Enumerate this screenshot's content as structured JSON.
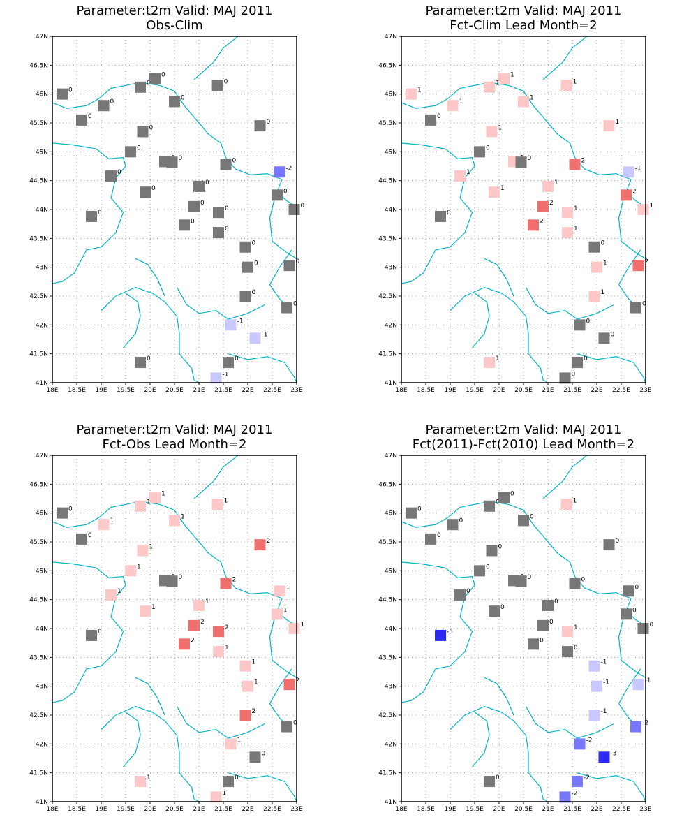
{
  "colors": {
    "river": "#00b4c8",
    "grid": "#999999",
    "-4": "#00008c",
    "-3": "#2a2af0",
    "-2": "#7878ff",
    "-1": "#c8c8ff",
    "0": "#777777",
    "1": "#ffc8c8",
    "2": "#f07070"
  },
  "axes": {
    "x_ticks": [
      "18E",
      "18.5E",
      "19E",
      "19.5E",
      "20E",
      "20.5E",
      "21E",
      "21.5E",
      "22E",
      "22.5E",
      "23E"
    ],
    "y_ticks": [
      "41N",
      "41.5N",
      "42N",
      "42.5N",
      "43N",
      "43.5N",
      "44N",
      "44.5N",
      "45N",
      "45.5N",
      "46N",
      "46.5N",
      "47N"
    ],
    "xlim": [
      18,
      23
    ],
    "ylim": [
      41,
      47
    ]
  },
  "stations": [
    [
      18.2,
      46.0
    ],
    [
      18.6,
      45.55
    ],
    [
      18.8,
      43.88
    ],
    [
      19.05,
      45.8
    ],
    [
      19.2,
      44.58
    ],
    [
      19.6,
      45.0
    ],
    [
      19.8,
      46.12
    ],
    [
      19.85,
      45.35
    ],
    [
      19.9,
      44.3
    ],
    [
      20.1,
      46.27
    ],
    [
      20.3,
      44.83
    ],
    [
      20.45,
      44.82
    ],
    [
      20.5,
      45.87
    ],
    [
      20.7,
      43.73
    ],
    [
      20.9,
      44.05
    ],
    [
      21.0,
      44.4
    ],
    [
      21.38,
      46.15
    ],
    [
      21.4,
      43.95
    ],
    [
      21.4,
      43.6
    ],
    [
      21.55,
      44.78
    ],
    [
      21.95,
      43.35
    ],
    [
      21.95,
      42.5
    ],
    [
      22.0,
      43.0
    ],
    [
      22.25,
      45.45
    ],
    [
      22.6,
      44.25
    ],
    [
      22.65,
      44.65
    ],
    [
      22.8,
      42.3
    ],
    [
      22.85,
      43.03
    ],
    [
      22.95,
      44.0
    ],
    [
      21.65,
      42.0
    ],
    [
      22.15,
      41.77
    ],
    [
      21.6,
      41.35
    ],
    [
      21.35,
      41.08
    ],
    [
      19.8,
      41.35
    ]
  ],
  "panels": [
    {
      "title_line1": "Parameter:t2m Valid: MAJ 2011",
      "title_line2": "Obs-Clim",
      "values": [
        0,
        0,
        0,
        0,
        0,
        0,
        0,
        0,
        0,
        0,
        0,
        0,
        0,
        0,
        0,
        0,
        0,
        0,
        0,
        0,
        0,
        0,
        0,
        0,
        0,
        -2,
        0,
        0,
        0,
        -1,
        -1,
        0,
        -1,
        0
      ]
    },
    {
      "title_line1": "Parameter:t2m Valid: MAJ 2011",
      "title_line2": "Fct-Clim Lead Month=2",
      "values": [
        1,
        0,
        0,
        1,
        1,
        0,
        1,
        1,
        1,
        1,
        1,
        0,
        1,
        2,
        2,
        1,
        1,
        1,
        1,
        2,
        0,
        1,
        1,
        1,
        2,
        -1,
        0,
        2,
        1,
        0,
        0,
        0,
        0,
        1
      ]
    },
    {
      "title_line1": "Parameter:t2m Valid: MAJ 2011",
      "title_line2": "Fct-Obs Lead Month=2",
      "values": [
        0,
        0,
        0,
        1,
        1,
        1,
        1,
        1,
        1,
        1,
        0,
        0,
        1,
        2,
        2,
        1,
        1,
        2,
        1,
        2,
        1,
        2,
        1,
        2,
        1,
        1,
        0,
        2,
        1,
        1,
        0,
        0,
        1,
        1
      ]
    },
    {
      "title_line1": "Parameter:t2m Valid: MAJ 2011",
      "title_line2": "Fct(2011)-Fct(2010) Lead Month=2",
      "values": [
        0,
        0,
        -3,
        0,
        0,
        0,
        0,
        0,
        0,
        0,
        0,
        0,
        0,
        0,
        0,
        0,
        1,
        1,
        0,
        0,
        -1,
        -1,
        -1,
        0,
        0,
        0,
        -2,
        -1,
        0,
        -2,
        -3,
        -2,
        -2,
        0
      ]
    }
  ]
}
